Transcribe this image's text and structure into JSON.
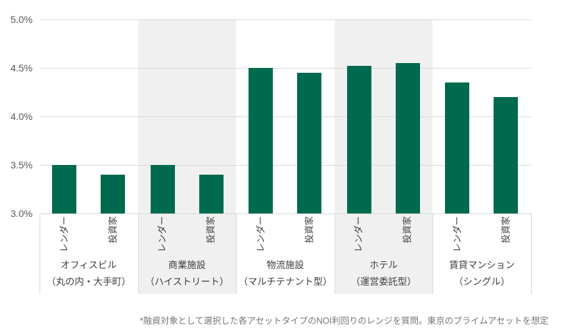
{
  "chart_data": {
    "type": "bar",
    "title": "",
    "xlabel": "",
    "ylabel": "",
    "ylim": [
      3.0,
      5.0
    ],
    "yticks": [
      {
        "value": 3.0,
        "label": "3.0%"
      },
      {
        "value": 3.5,
        "label": "3.5%"
      },
      {
        "value": 4.0,
        "label": "4.0%"
      },
      {
        "value": 4.5,
        "label": "4.5%"
      },
      {
        "value": 5.0,
        "label": "5.0%"
      }
    ],
    "grid": "horizontal",
    "legend_position": "none",
    "categories": [
      {
        "name": "オフィスビル",
        "sub": "（丸の内・大手町）",
        "shaded": false
      },
      {
        "name": "商業施設",
        "sub": "（ハイストリート）",
        "shaded": true
      },
      {
        "name": "物流施設",
        "sub": "（マルチテナント型）",
        "shaded": false
      },
      {
        "name": "ホテル",
        "sub": "（運営委託型）",
        "shaded": true
      },
      {
        "name": "賃貸マンション",
        "sub": "（シングル）",
        "shaded": false
      }
    ],
    "series": [
      {
        "name": "レンダー",
        "values": [
          3.5,
          3.5,
          4.5,
          4.52,
          4.35
        ]
      },
      {
        "name": "投資家",
        "values": [
          3.4,
          3.4,
          4.45,
          4.55,
          4.2
        ]
      }
    ],
    "footnote": "*融資対象として選択した各アセットタイプのNOI利回りのレンジを質問。東京のプライムアセットを想定",
    "colors": {
      "bar": "#006a4e",
      "band": "#f0f0f0",
      "gridline": "#d9d9d9",
      "tick_label": "#595959",
      "series_label": "#404040",
      "category_label": "#3d3d3d",
      "footnote": "#757575",
      "background": "#ffffff"
    }
  }
}
